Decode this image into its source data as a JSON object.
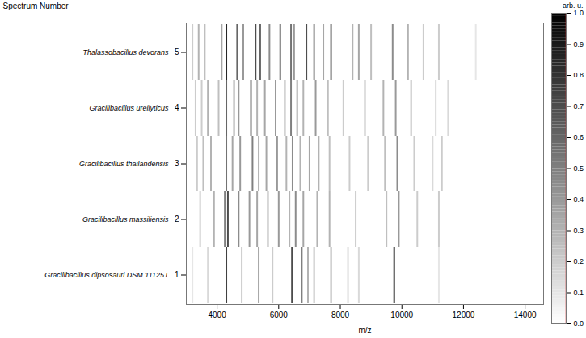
{
  "chart_data": {
    "type": "gel",
    "x_label": "m/z",
    "y_label": "Spectrum Number",
    "xlim": [
      3000,
      14600
    ],
    "xticks": [
      4000,
      6000,
      8000,
      10000,
      12000,
      14000
    ],
    "color": "#000000",
    "spectra": [
      {
        "number": 5,
        "name": "Thalassobacillus devorans",
        "peaks": {
          "mz": [
            3200,
            3400,
            3600,
            4150,
            4300,
            4650,
            4850,
            5250,
            5400,
            5700,
            6050,
            6400,
            6500,
            6900,
            7150,
            7450,
            7700,
            8400,
            8600,
            9000,
            9700,
            10200,
            10700,
            11200,
            12400
          ],
          "intensity": [
            0.2,
            0.3,
            0.25,
            0.35,
            0.85,
            0.6,
            0.4,
            0.7,
            0.6,
            0.45,
            0.6,
            0.55,
            0.4,
            0.7,
            0.5,
            0.35,
            0.6,
            0.3,
            0.35,
            0.25,
            0.45,
            0.3,
            0.2,
            0.2,
            0.1
          ]
        }
      },
      {
        "number": 4,
        "name": "Gracilibacillus ureilyticus",
        "peaks": {
          "mz": [
            3300,
            3500,
            3700,
            4050,
            4300,
            4550,
            4700,
            5100,
            5300,
            5550,
            5900,
            6200,
            6400,
            6600,
            6800,
            7200,
            7600,
            8100,
            8800,
            9400,
            9800,
            10300,
            11100,
            11500
          ],
          "intensity": [
            0.2,
            0.2,
            0.3,
            0.25,
            0.6,
            0.35,
            0.4,
            0.55,
            0.3,
            0.35,
            0.4,
            0.3,
            0.5,
            0.35,
            0.3,
            0.4,
            0.25,
            0.2,
            0.25,
            0.3,
            0.4,
            0.25,
            0.15,
            0.15
          ]
        }
      },
      {
        "number": 3,
        "name": "Gracilibacillus thailandensis",
        "peaks": {
          "mz": [
            3350,
            3550,
            3800,
            4300,
            4500,
            4750,
            5150,
            5350,
            5600,
            5950,
            6250,
            6450,
            6700,
            7000,
            7300,
            7650,
            8300,
            8900,
            9450,
            9850,
            10400,
            11000,
            11300
          ],
          "intensity": [
            0.2,
            0.25,
            0.3,
            0.55,
            0.35,
            0.4,
            0.5,
            0.3,
            0.35,
            0.4,
            0.3,
            0.45,
            0.3,
            0.35,
            0.3,
            0.25,
            0.2,
            0.2,
            0.25,
            0.45,
            0.2,
            0.15,
            0.2
          ]
        }
      },
      {
        "number": 2,
        "name": "Gracilibacillus massiliensis",
        "peaks": {
          "mz": [
            3450,
            3900,
            4250,
            4350,
            4700,
            5050,
            5300,
            5650,
            6000,
            6350,
            6550,
            6800,
            7250,
            7650,
            8500,
            9500,
            9900,
            10500,
            11200
          ],
          "intensity": [
            0.2,
            0.3,
            0.5,
            0.7,
            0.45,
            0.4,
            0.35,
            0.3,
            0.4,
            0.3,
            0.45,
            0.35,
            0.3,
            0.3,
            0.2,
            0.25,
            0.4,
            0.2,
            0.2
          ]
        }
      },
      {
        "number": 1,
        "name": "Gracilibacillus dipsosauri DSM 11125T",
        "peaks": {
          "mz": [
            3200,
            3700,
            4300,
            4800,
            5350,
            5800,
            6430,
            6750,
            6950,
            7150,
            7700,
            8250,
            8600,
            9750,
            11200
          ],
          "intensity": [
            0.1,
            0.15,
            0.75,
            0.2,
            0.35,
            0.2,
            0.7,
            0.5,
            0.3,
            0.25,
            0.3,
            0.15,
            0.15,
            0.8,
            0.1
          ]
        }
      }
    ],
    "colorbar": {
      "label": "arb. u.",
      "range": [
        0,
        1
      ],
      "ticks": [
        {
          "value": 0,
          "label": "0.0"
        },
        0.1,
        0.2,
        0.3,
        0.4,
        0.5,
        0.6,
        0.7,
        0.8,
        0.9,
        {
          "value": 1,
          "label": "1.0"
        }
      ]
    }
  }
}
